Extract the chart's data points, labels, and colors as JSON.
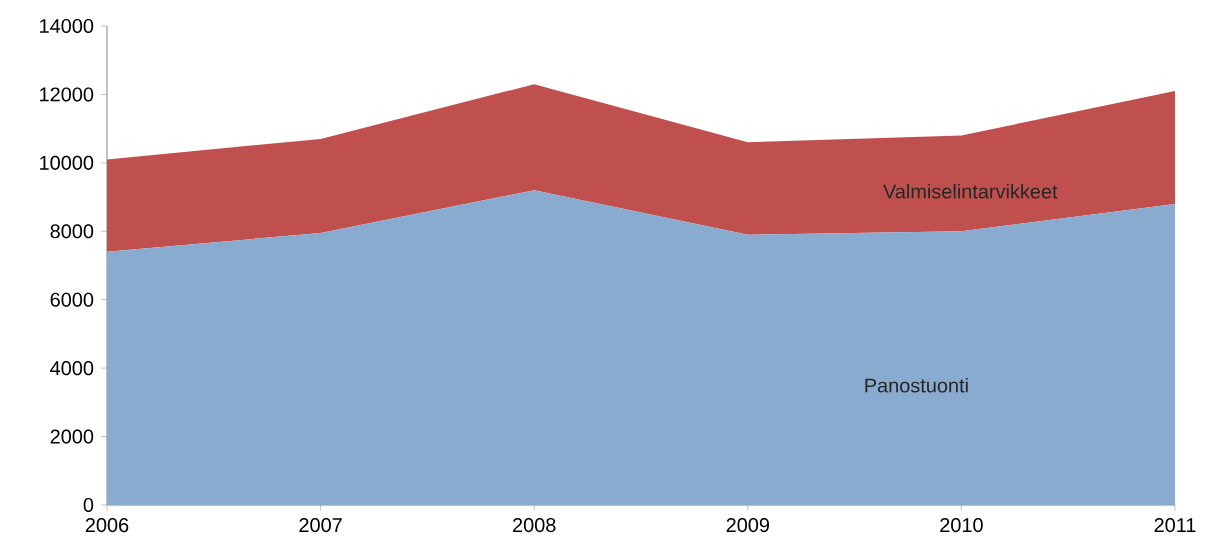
{
  "chart_data": {
    "type": "area",
    "stacked": true,
    "x": [
      2006,
      2007,
      2008,
      2009,
      2010,
      2011
    ],
    "series": [
      {
        "name": "Panostuonti",
        "color": "#8aabd0",
        "values": [
          7400,
          7950,
          9200,
          7900,
          8000,
          8800
        ]
      },
      {
        "name": "Valmiselintarvikkeet",
        "color": "#c0504d",
        "values": [
          2700,
          2750,
          3100,
          2700,
          2800,
          3300
        ]
      }
    ],
    "xlim": [
      2006,
      2011
    ],
    "xticks": [
      2006,
      2007,
      2008,
      2009,
      2010,
      2011
    ],
    "ylim": [
      0,
      14000
    ],
    "yticks": [
      0,
      2000,
      4000,
      6000,
      8000,
      10000,
      12000,
      14000
    ],
    "grid": false
  }
}
